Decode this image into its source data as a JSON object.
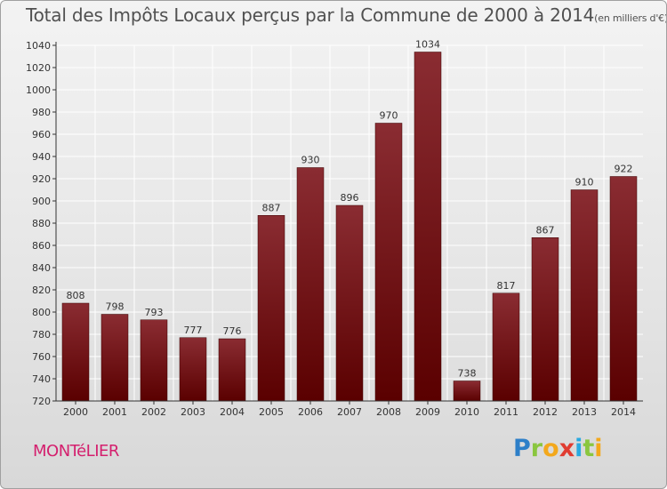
{
  "header": {
    "title": "Total des Impôts Locaux perçus par la Commune de 2000 à 2014",
    "unit": "(en milliers d'€)"
  },
  "footer": {
    "commune": "MONTéLIER",
    "logo": {
      "p": "P",
      "r": "r",
      "o": "o",
      "x": "x",
      "i1": "i",
      "t": "t",
      "i2": "i"
    }
  },
  "colors": {
    "bar_top": "#8a2c32",
    "bar_bottom": "#5a0000",
    "axis": "#333333",
    "grid": "#ffffff",
    "text": "#333333"
  },
  "chart_data": {
    "type": "bar",
    "title": "Total des Impôts Locaux perçus par la Commune de 2000 à 2014",
    "xlabel": "",
    "ylabel": "",
    "categories": [
      "2000",
      "2001",
      "2002",
      "2003",
      "2004",
      "2005",
      "2006",
      "2007",
      "2008",
      "2009",
      "2010",
      "2011",
      "2012",
      "2013",
      "2014"
    ],
    "values": [
      808,
      798,
      793,
      777,
      776,
      887,
      930,
      896,
      970,
      1034,
      738,
      817,
      867,
      910,
      922
    ],
    "ylim": [
      720,
      1040
    ],
    "ytick_step": 20,
    "grid": true
  }
}
